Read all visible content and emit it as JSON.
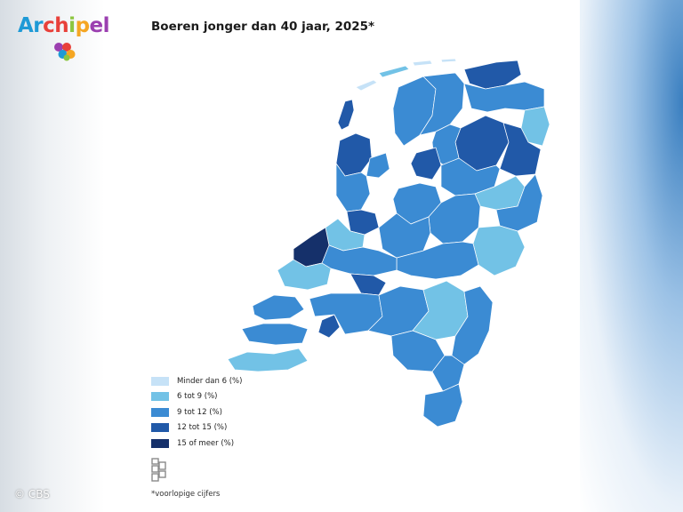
{
  "brand": {
    "logo_letters": [
      "Ar",
      "ch",
      "i",
      "p",
      "el"
    ],
    "logo_colors": [
      "#1f9ad6",
      "#e8403a",
      "#8cc63f",
      "#f5a623",
      "#9b3fb0"
    ]
  },
  "map": {
    "title": "Boeren jonger dan 40 jaar, 2025*",
    "legend_title": "",
    "legend": [
      {
        "label": "Minder dan 6 (%)",
        "color": "#c6e2f7"
      },
      {
        "label": "6 tot 9 (%)",
        "color": "#72c2e6"
      },
      {
        "label": "9 tot 12 (%)",
        "color": "#3b8bd3"
      },
      {
        "label": "12 tot 15 (%)",
        "color": "#2159a8"
      },
      {
        "label": "15 of meer (%)",
        "color": "#15306a"
      }
    ],
    "water_color": "#c6e2f7",
    "footnote": "*voorlopige cijfers",
    "source_icon": "cbs-logo-icon"
  },
  "footer": {
    "copyright": "© CBS"
  }
}
